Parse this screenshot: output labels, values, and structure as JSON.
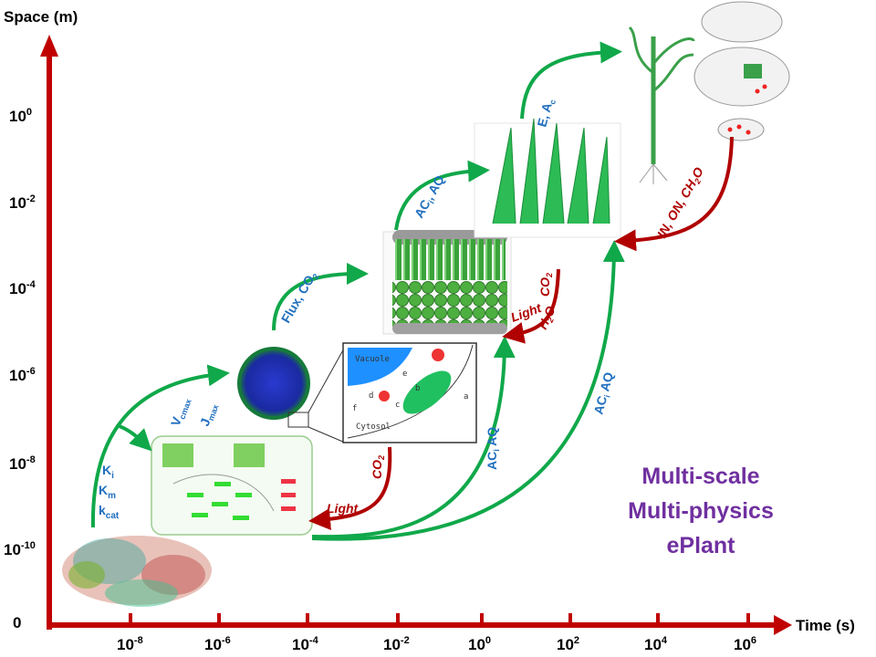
{
  "axes": {
    "y_label": "Space (m)",
    "x_label": "Time (s)",
    "y_ticks": [
      {
        "base": "10",
        "exp": "0"
      },
      {
        "base": "10",
        "exp": "-2"
      },
      {
        "base": "10",
        "exp": "-4"
      },
      {
        "base": "10",
        "exp": "-6"
      },
      {
        "base": "10",
        "exp": "-8"
      },
      {
        "base": "10",
        "exp": "-10"
      }
    ],
    "origin": "0",
    "x_ticks": [
      {
        "base": "10",
        "exp": "-8"
      },
      {
        "base": "10",
        "exp": "-6"
      },
      {
        "base": "10",
        "exp": "-4"
      },
      {
        "base": "10",
        "exp": "-2"
      },
      {
        "base": "10",
        "exp": "0"
      },
      {
        "base": "10",
        "exp": "2"
      },
      {
        "base": "10",
        "exp": "4"
      },
      {
        "base": "10",
        "exp": "6"
      }
    ],
    "color": "#c00000"
  },
  "labels": {
    "ki": "K",
    "ki_sub": "i",
    "km": "K",
    "km_sub": "m",
    "kcat": "k",
    "kcat_sub": "cat",
    "vcmax": "V",
    "vcmax_sub": "cmax",
    "jmax": "J",
    "jmax_sub": "max",
    "flux": "Flux, CO",
    "flux_sub": "2",
    "acaq1": "AC",
    "acaq1_sub": "i",
    "acaq1_rest": ", AQ",
    "acaq2": "AC",
    "acaq2_sub": "i",
    "acaq2_rest": " AQ",
    "acaq3": "AC",
    "acaq3_sub": "i",
    "acaq3_rest": " AQ",
    "e_ac": "E, A",
    "e_ac_sub": "c",
    "light1": "Light",
    "co2_1": "CO",
    "co2_1_sub": "2",
    "light2": "Light",
    "co2_2": "CO",
    "co2_2_sub": "2",
    "h2o": "H",
    "h2o_sub": "2",
    "h2o_rest": "O",
    "in_on": "IN, ON, CH",
    "in_on_sub": "2",
    "in_on_rest": "O"
  },
  "cell_diagram": {
    "vacuole": "Vacuole",
    "cytosol": "Cytosol",
    "a": "a",
    "b": "b",
    "c": "c",
    "d": "d",
    "e": "e",
    "f": "f"
  },
  "title": [
    "Multi-scale",
    "Multi-physics",
    "ePlant"
  ],
  "colors": {
    "green_arrow": "#10a84a",
    "red_arrow": "#b00000",
    "label_blue": "#1f6fbf",
    "title_purple": "#7030a0"
  }
}
